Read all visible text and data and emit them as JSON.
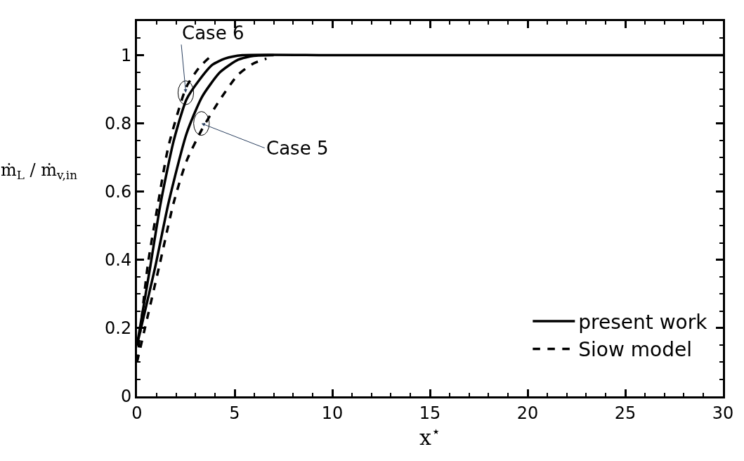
{
  "chart_data": {
    "type": "line",
    "xlabel": "x$^{⋆}$",
    "ylabel": "ṁ$_{L}$ / ṁ$_{v,in}$",
    "xlim": [
      0,
      30
    ],
    "ylim": [
      0,
      1.1
    ],
    "xticks": [
      0,
      5,
      10,
      15,
      20,
      25,
      30
    ],
    "yticks": [
      0,
      0.2,
      0.4,
      0.6,
      0.8,
      1
    ],
    "legend": "bottom right",
    "marker": "none",
    "series": [
      {
        "name": "present work",
        "color": "#000000",
        "line_style": "solid",
        "x": [
          0,
          0.69,
          1.21,
          1.87,
          2.53,
          3.2,
          3.86,
          4.5,
          5.4,
          10,
          20,
          30
        ],
        "values": [
          0.15,
          0.384,
          0.566,
          0.747,
          0.87,
          0.928,
          0.972,
          0.99,
          1.0,
          1.0,
          1.0,
          1.0
        ]
      },
      {
        "color": "#000000",
        "line_style": "solid",
        "x": [
          0,
          0.95,
          1.61,
          2.53,
          3.33,
          4.25,
          5.18,
          5.97,
          7
        ],
        "values": [
          0.15,
          0.384,
          0.566,
          0.769,
          0.878,
          0.95,
          0.987,
          0.998,
          1.0
        ]
      },
      {
        "name": "Siow model",
        "color": "#000000",
        "line_style": "dashed",
        "x": [
          0,
          0.55,
          1.08,
          1.61,
          2.53,
          3.2,
          3.72
        ],
        "values": [
          0.1,
          0.384,
          0.566,
          0.733,
          0.907,
          0.965,
          0.994
        ]
      },
      {
        "color": "#000000",
        "line_style": "dashed",
        "x": [
          0,
          1.15,
          1.87,
          2.53,
          3.33,
          4.25,
          5.18,
          5.97,
          6.63
        ],
        "values": [
          0.1,
          0.384,
          0.566,
          0.689,
          0.783,
          0.87,
          0.943,
          0.976,
          0.99
        ]
      }
    ],
    "annotations": [
      {
        "text": "Case 6",
        "x": 2.5,
        "y": 0.89
      },
      {
        "text": "Case 5",
        "x": 3.3,
        "y": 0.8
      }
    ]
  }
}
